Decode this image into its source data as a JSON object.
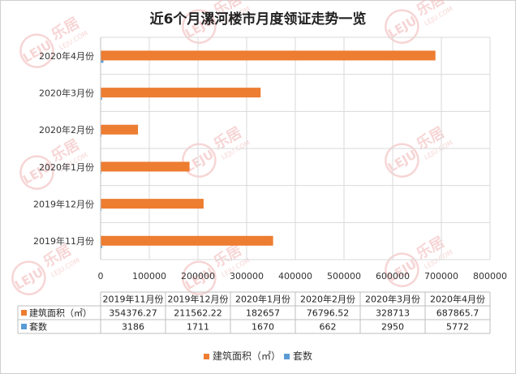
{
  "watermark": {
    "text": "LEJU",
    "cn": "乐居",
    "sub": "LEJU.COM",
    "color": "#f2b3b3"
  },
  "chart_data": {
    "type": "bar",
    "orientation": "horizontal",
    "title": "近6个月漯河楼市月度领证走势一览",
    "categories": [
      "2019年11月份",
      "2019年12月份",
      "2020年1月份",
      "2020年2月份",
      "2020年3月份",
      "2020年4月份"
    ],
    "series": [
      {
        "name": "建筑面积（㎡）",
        "color": "#ed7d31",
        "values": [
          354376.27,
          211562.22,
          182657,
          76796.52,
          328713,
          687865.7
        ],
        "labels": [
          "354376.27",
          "211562.22",
          "182657",
          "76796.52",
          "328713",
          "687865.7"
        ]
      },
      {
        "name": "套数",
        "color": "#5b9bd5",
        "values": [
          3186,
          1711,
          1670,
          662,
          2950,
          5772
        ],
        "labels": [
          "3186",
          "1711",
          "1670",
          "662",
          "2950",
          "5772"
        ]
      }
    ],
    "xlim": [
      0,
      800000
    ],
    "xticks": [
      "0",
      "100000",
      "200000",
      "300000",
      "400000",
      "500000",
      "600000",
      "700000",
      "800000"
    ],
    "grid": true,
    "legend_position": "bottom",
    "data_table": true
  }
}
